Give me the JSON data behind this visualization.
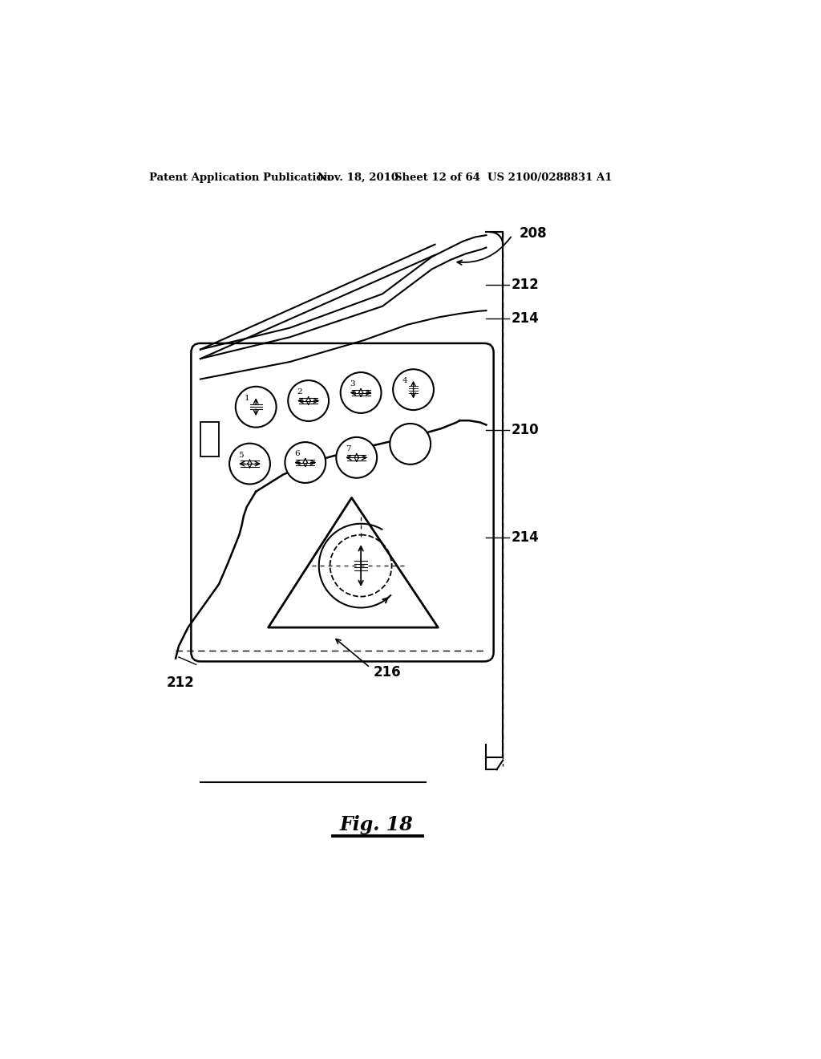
{
  "bg_color": "#ffffff",
  "header_left": "Patent Application Publication",
  "header_date": "Nov. 18, 2010",
  "header_sheet": "Sheet 12 of 64",
  "header_patent": "US 2100/0288831 A1",
  "fig_label": "Fig. 18"
}
